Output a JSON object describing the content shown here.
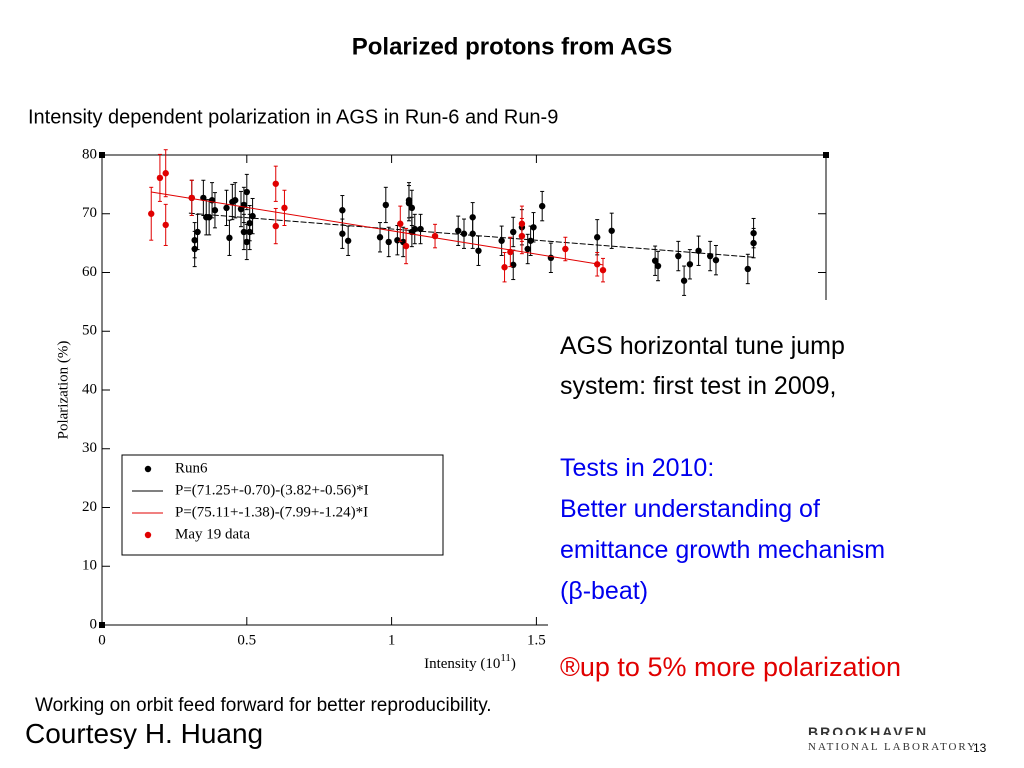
{
  "slide": {
    "title": "Polarized protons from AGS",
    "subtitle": "Intensity dependent polarization in AGS in Run-6 and Run-9",
    "notes": [
      "AGS horizontal tune jump",
      "system: first test in 2009,"
    ],
    "tests": [
      "Tests in 2010:",
      "Better understanding of",
      "emittance growth mechanism",
      "(β-beat)"
    ],
    "result": "®up to 5% more polarization",
    "footer": "Working on orbit feed forward for better reproducibility.",
    "credit": "Courtesy H. Huang",
    "page": "13",
    "logo": [
      "BROOKHAVEN",
      "NATIONAL LABORATORY"
    ]
  },
  "chart_data": {
    "type": "scatter",
    "x_label": {
      "text": "Intensity (10",
      "sup": "11",
      "end": ")"
    },
    "y_label": "Polarization (%)",
    "xlim": [
      0,
      2.5
    ],
    "xticks": [
      0,
      0.5,
      1,
      1.5
    ],
    "ylim": [
      0,
      80
    ],
    "yticks": [
      0,
      10,
      20,
      30,
      40,
      50,
      60,
      70,
      80
    ],
    "series": [
      {
        "name": "Run6",
        "kind": "points",
        "color": "#000000",
        "x": [
          0.31,
          0.32,
          0.32,
          0.33,
          0.35,
          0.36,
          0.37,
          0.38,
          0.39,
          0.43,
          0.44,
          0.45,
          0.46,
          0.48,
          0.49,
          0.49,
          0.5,
          0.5,
          0.51,
          0.51,
          0.52,
          0.83,
          0.83,
          0.85,
          0.96,
          0.98,
          0.99,
          1.02,
          1.04,
          1.06,
          1.06,
          1.07,
          1.07,
          1.08,
          1.1,
          1.23,
          1.25,
          1.28,
          1.28,
          1.3,
          1.38,
          1.42,
          1.42,
          1.45,
          1.47,
          1.48,
          1.49,
          1.52,
          1.55,
          1.71,
          1.76,
          1.91,
          1.92,
          1.99,
          2.01,
          2.03,
          2.06,
          2.1,
          2.12,
          2.23,
          2.25,
          2.25
        ],
        "values": [
          72.7,
          65.5,
          64,
          66.9,
          72.7,
          69.4,
          69.4,
          72.3,
          70.6,
          71,
          65.9,
          72,
          72.3,
          70.8,
          71.5,
          66.9,
          73.7,
          65.2,
          66.9,
          68.4,
          69.6,
          70.6,
          66.6,
          65.4,
          66,
          71.5,
          65.2,
          65.5,
          65.2,
          72.3,
          71.8,
          66.9,
          71,
          67.4,
          67.4,
          67.1,
          66.6,
          69.4,
          66.6,
          63.7,
          65.4,
          66.9,
          61.3,
          67.7,
          64,
          65.4,
          67.7,
          71.3,
          62.5,
          66,
          67.1,
          62,
          61.1,
          62.8,
          58.6,
          61.4,
          63.7,
          62.8,
          62.1,
          60.6,
          66.7,
          65
        ],
        "errors": [
          3,
          3,
          3,
          3,
          3,
          3,
          3,
          3,
          3,
          3,
          3,
          3,
          3,
          3,
          3,
          3,
          3,
          3,
          3,
          3,
          3,
          2.5,
          2.5,
          2.5,
          2.5,
          3,
          2.5,
          2.5,
          2.5,
          3,
          3,
          2.5,
          3,
          2.5,
          2.5,
          2.5,
          2.5,
          2.5,
          2.5,
          2.5,
          2.5,
          2.5,
          2.5,
          3,
          2.5,
          2.5,
          2.5,
          2.5,
          2.5,
          3,
          3,
          2.5,
          2.5,
          2.5,
          2.5,
          2.5,
          2.5,
          2.5,
          2.5,
          2.5,
          2.5,
          2.5
        ]
      },
      {
        "name": "P=(71.25+-0.70)-(3.82+-0.56)*I",
        "kind": "line",
        "color": "#000000",
        "x": [
          0.3,
          2.25
        ],
        "values": [
          70.1,
          62.6
        ]
      },
      {
        "name": "P=(75.11+-1.38)-(7.99+-1.24)*I",
        "kind": "line",
        "color": "#e00000",
        "x": [
          0.17,
          1.73
        ],
        "values": [
          73.7,
          61.3
        ]
      },
      {
        "name": "May 19 data",
        "kind": "points",
        "color": "#e00000",
        "x": [
          0.17,
          0.2,
          0.22,
          0.22,
          0.31,
          0.6,
          0.6,
          0.63,
          1.03,
          1.05,
          1.15,
          1.39,
          1.41,
          1.45,
          1.45,
          1.6,
          1.71,
          1.73
        ],
        "values": [
          70,
          76.1,
          76.9,
          68.1,
          72.7,
          75.1,
          67.9,
          71,
          68.3,
          64.5,
          66.2,
          60.9,
          63.5,
          68.3,
          66.2,
          64,
          61.4,
          60.4
        ],
        "errors": [
          4.5,
          4,
          4,
          3.5,
          3,
          3,
          3,
          3,
          3,
          3,
          2,
          2.5,
          2.5,
          3,
          3,
          2,
          2,
          2
        ]
      }
    ]
  }
}
